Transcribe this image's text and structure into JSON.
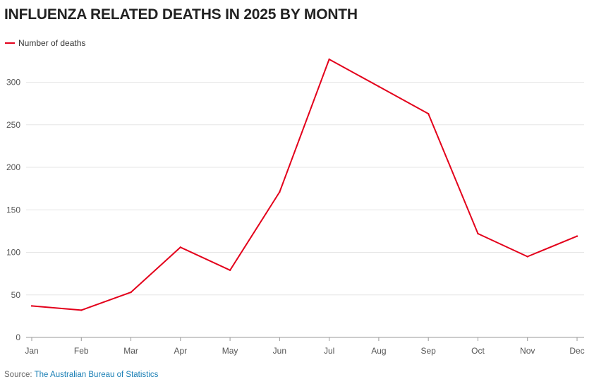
{
  "colors": {
    "series": "#e3001b",
    "grid": "#e6e6e6",
    "axis": "#999999",
    "link": "#1a7fb5"
  },
  "source": {
    "prefix": "Source:",
    "link_text": "The Australian Bureau of Statistics"
  },
  "chart_data": {
    "type": "line",
    "title": "INFLUENZA RELATED DEATHS IN 2025 BY MONTH",
    "xlabel": "",
    "ylabel": "",
    "categories": [
      "Jan",
      "Feb",
      "Mar",
      "Apr",
      "May",
      "Jun",
      "Jul",
      "Aug",
      "Sep",
      "Oct",
      "Nov",
      "Dec"
    ],
    "series": [
      {
        "name": "Number of deaths",
        "values": [
          37,
          32,
          53,
          106,
          79,
          171,
          327,
          295,
          263,
          122,
          95,
          119
        ]
      }
    ],
    "ylim": [
      0,
      330
    ],
    "yticks": [
      0,
      50,
      100,
      150,
      200,
      250,
      300
    ],
    "grid": true,
    "legend": "top-left"
  }
}
